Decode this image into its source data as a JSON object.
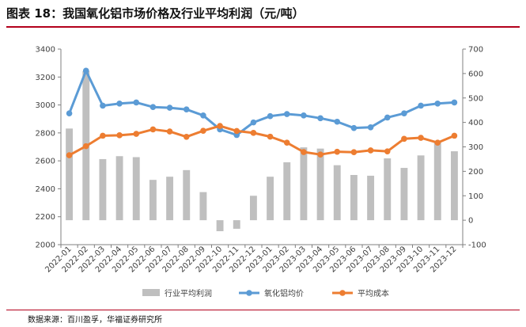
{
  "title": "图表 18：我国氧化铝市场价格及行业平均利润（元/吨）",
  "source": "数据来源：百川盈孚，华福证券研究所",
  "chart_data": {
    "type": "bar+line",
    "categories": [
      "2022-01",
      "2022-02",
      "2022-03",
      "2022-04",
      "2022-05",
      "2022-06",
      "2022-07",
      "2022-08",
      "2022-09",
      "2022-10",
      "2022-11",
      "2022-12",
      "2023-01",
      "2023-02",
      "2023-03",
      "2023-04",
      "2023-05",
      "2023-06",
      "2023-07",
      "2023-08",
      "2023-09",
      "2023-10",
      "2023-11",
      "2023-12"
    ],
    "left_axis": {
      "min": 2000,
      "max": 3400,
      "ticks": [
        "2000",
        "2200",
        "2400",
        "2600",
        "2800",
        "3000",
        "3200",
        "3400"
      ]
    },
    "right_axis": {
      "min": -100,
      "max": 700,
      "ticks": [
        "-100",
        "0",
        "100",
        "200",
        "300",
        "400",
        "500",
        "600",
        "700"
      ]
    },
    "series": [
      {
        "name": "行业平均利润",
        "type": "bar",
        "axis": "right",
        "color": "#bfbfbf",
        "values": [
          375,
          610,
          250,
          262,
          258,
          165,
          178,
          205,
          115,
          -45,
          -35,
          100,
          178,
          237,
          298,
          293,
          225,
          185,
          182,
          253,
          214,
          265,
          320,
          282
        ]
      },
      {
        "name": "氧化铝均价",
        "type": "line",
        "axis": "left",
        "color": "#5b9bd5",
        "values": [
          2940,
          3245,
          2995,
          3010,
          3018,
          2985,
          2980,
          2968,
          2925,
          2825,
          2785,
          2875,
          2920,
          2935,
          2925,
          2905,
          2880,
          2835,
          2840,
          2910,
          2940,
          2995,
          3010,
          3018
        ]
      },
      {
        "name": "平均成本",
        "type": "line",
        "axis": "left",
        "color": "#ed7d31",
        "values": [
          2640,
          2705,
          2780,
          2783,
          2793,
          2825,
          2810,
          2772,
          2815,
          2850,
          2814,
          2800,
          2773,
          2730,
          2663,
          2645,
          2665,
          2662,
          2675,
          2668,
          2758,
          2765,
          2730,
          2780
        ]
      }
    ],
    "legend_position": "bottom",
    "grid": false
  }
}
